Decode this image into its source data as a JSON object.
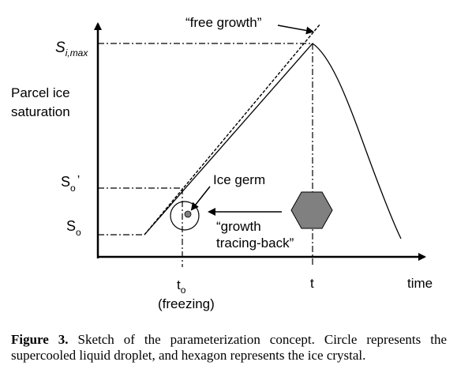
{
  "diagram": {
    "y_axis_title_line1": "Parcel ice",
    "y_axis_title_line2": "saturation",
    "x_axis_label": "time",
    "s_imax_main": "S",
    "s_imax_sub": "i,max",
    "so_prime_main": "S",
    "so_prime_sub": "o",
    "so_prime_mark": "’",
    "so_main": "S",
    "so_sub": "o",
    "to_main": "t",
    "to_sub": "o",
    "freezing_label": "(freezing)",
    "t_label": "t",
    "free_growth_label": "“free growth”",
    "ice_germ_label": "Ice germ",
    "growth_label_line1": "“growth",
    "growth_label_line2": "tracing-back”",
    "colors": {
      "line": "#000000",
      "hexagon_fill": "#808080",
      "germ_fill": "#808080"
    }
  },
  "caption": {
    "label": "Figure 3.",
    "text": "Sketch of the parameterization concept. Circle represents the supercooled liquid droplet, and hexagon represents the ice crystal."
  }
}
